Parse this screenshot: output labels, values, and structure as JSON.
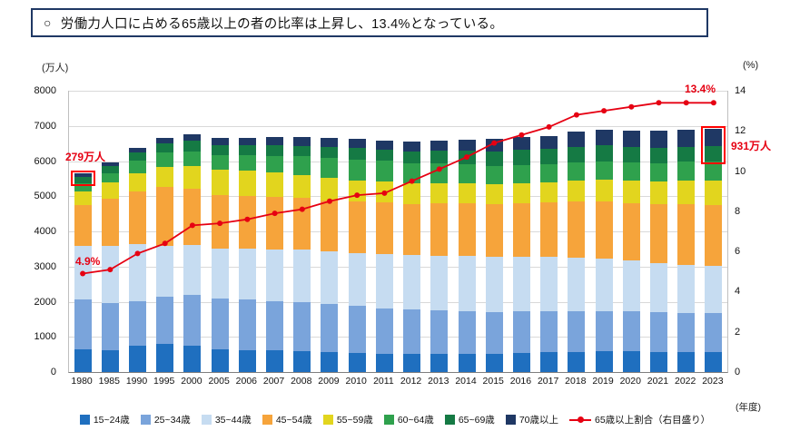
{
  "title": {
    "bullet": "○",
    "text": "労働力人口に占める65歳以上の者の比率は上昇し、13.4%となっている。"
  },
  "axis": {
    "left_unit": "(万人)",
    "right_unit": "(%)",
    "x_unit": "(年度)",
    "left_ticks": [
      0,
      1000,
      2000,
      3000,
      4000,
      5000,
      6000,
      7000,
      8000
    ],
    "right_ticks": [
      0,
      2,
      4,
      6,
      8,
      10,
      12,
      14
    ]
  },
  "annotations": {
    "start_value": "279万人",
    "start_ratio": "4.9%",
    "end_ratio": "13.4%",
    "end_value": "931万人"
  },
  "chart_data": {
    "type": "bar",
    "subtype": "stacked-bars-with-line-overlay",
    "title": "労働力人口に占める65歳以上の者の比率は上昇し、13.4%となっている。",
    "xlabel": "(年度)",
    "ylabel_left": "(万人)",
    "ylabel_right": "(%)",
    "ylim_left": [
      0,
      8000
    ],
    "ylim_right": [
      0,
      14
    ],
    "grid": true,
    "legend_position": "bottom",
    "categories": [
      "1980",
      "1985",
      "1990",
      "1995",
      "2000",
      "2005",
      "2006",
      "2007",
      "2008",
      "2009",
      "2010",
      "2011",
      "2012",
      "2013",
      "2014",
      "2015",
      "2016",
      "2017",
      "2018",
      "2019",
      "2020",
      "2021",
      "2022",
      "2023"
    ],
    "series": [
      {
        "name": "15~24歳",
        "color": "#1f6fbf",
        "values": [
          640,
          624,
          747,
          801,
          747,
          634,
          622,
          614,
          598,
          581,
          544,
          525,
          518,
          518,
          518,
          516,
          542,
          575,
          580,
          587,
          583,
          565,
          557,
          560
        ]
      },
      {
        "name": "25~34歳",
        "color": "#7aa4db",
        "values": [
          1419,
          1339,
          1265,
          1348,
          1449,
          1461,
          1437,
          1410,
          1380,
          1349,
          1329,
          1291,
          1261,
          1231,
          1204,
          1191,
          1176,
          1163,
          1160,
          1151,
          1139,
          1127,
          1117,
          1112
        ]
      },
      {
        "name": "35~44歳",
        "color": "#c6dcf1",
        "values": [
          1518,
          1623,
          1630,
          1442,
          1421,
          1405,
          1440,
          1470,
          1495,
          1505,
          1520,
          1540,
          1549,
          1565,
          1573,
          1574,
          1560,
          1543,
          1515,
          1479,
          1441,
          1401,
          1380,
          1350
        ]
      },
      {
        "name": "45~54歳",
        "color": "#f6a43b",
        "values": [
          1177,
          1336,
          1502,
          1662,
          1595,
          1540,
          1515,
          1482,
          1472,
          1449,
          1458,
          1474,
          1449,
          1485,
          1502,
          1503,
          1526,
          1534,
          1597,
          1648,
          1647,
          1670,
          1712,
          1732
        ]
      },
      {
        "name": "55~59歳",
        "color": "#e2d51e",
        "values": [
          391,
          465,
          515,
          580,
          638,
          706,
          714,
          696,
          664,
          631,
          606,
          589,
          580,
          572,
          568,
          567,
          574,
          584,
          597,
          614,
          635,
          655,
          676,
          695
        ]
      },
      {
        "name": "60~64歳",
        "color": "#2fa14d",
        "values": [
          226,
          269,
          348,
          406,
          422,
          413,
          430,
          484,
          524,
          570,
          591,
          585,
          575,
          556,
          537,
          519,
          508,
          501,
          507,
          512,
          516,
          523,
          535,
          545
        ]
      },
      {
        "name": "65~69歳",
        "color": "#157a44",
        "values": [
          180,
          195,
          239,
          266,
          300,
          286,
          292,
          302,
          306,
          317,
          324,
          322,
          340,
          368,
          390,
          413,
          426,
          437,
          456,
          455,
          448,
          441,
          432,
          425
        ]
      },
      {
        "name": "70歳以上",
        "color": "#1f3864",
        "values": [
          99,
          109,
          138,
          161,
          194,
          206,
          214,
          226,
          235,
          248,
          260,
          265,
          283,
          298,
          317,
          342,
          361,
          383,
          418,
          440,
          459,
          478,
          493,
          506
        ]
      }
    ],
    "line_series": {
      "name": "65歳以上割合（右目盛り）",
      "color": "#e60012",
      "axis": "right",
      "values": [
        4.9,
        5.1,
        5.9,
        6.4,
        7.3,
        7.4,
        7.6,
        7.9,
        8.1,
        8.5,
        8.8,
        8.9,
        9.5,
        10.1,
        10.7,
        11.4,
        11.8,
        12.2,
        12.8,
        13.0,
        13.2,
        13.4,
        13.4,
        13.4
      ]
    },
    "highlight_indexes": [
      0,
      23
    ],
    "highlight_color": "#ff0000"
  }
}
